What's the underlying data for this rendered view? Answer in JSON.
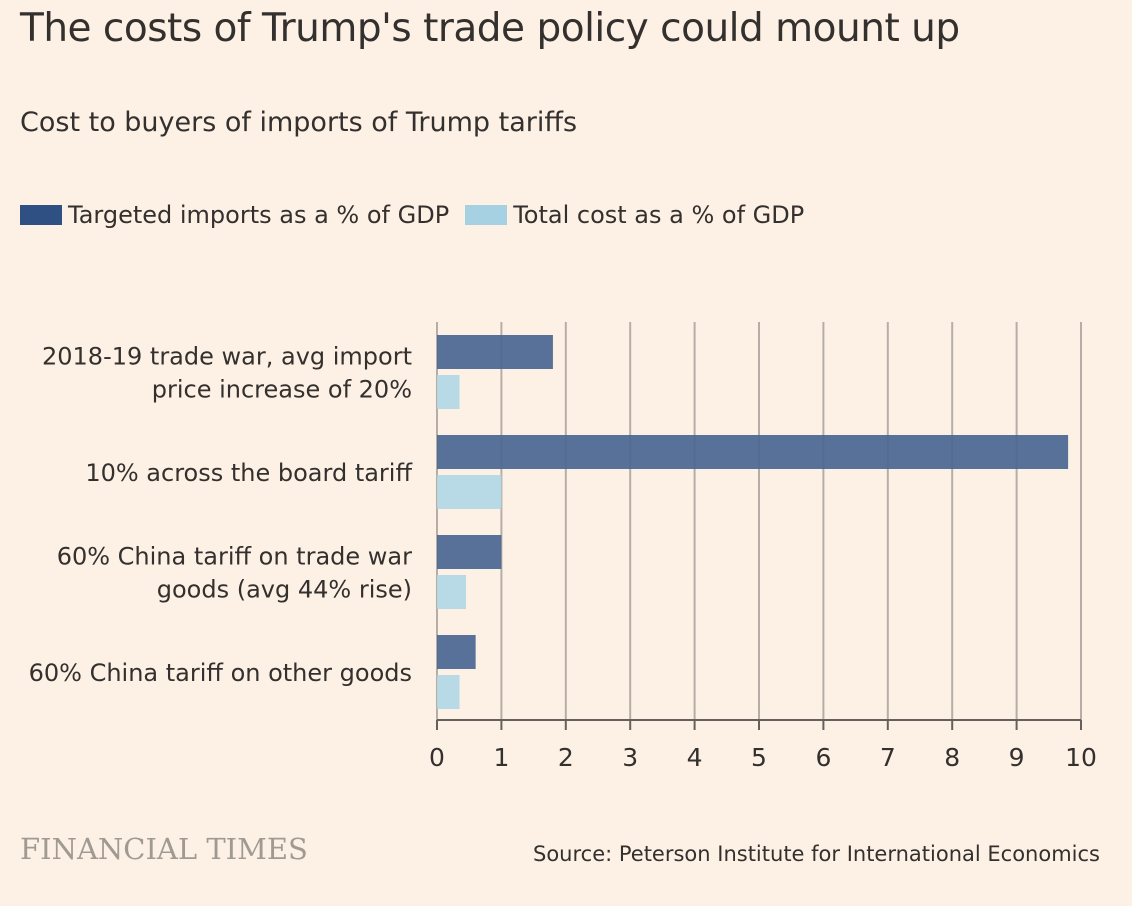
{
  "header": {
    "title": "The costs of Trump's trade policy could mount up",
    "subtitle": "Cost to buyers of imports of Trump tariffs"
  },
  "footer": {
    "logo_text": "FINANCIAL TIMES",
    "source": "Source: Peterson Institute for International Economics"
  },
  "colors": {
    "background": "#fdf1e6",
    "series_dark": "#4a6691",
    "series_light": "#b2d8e6",
    "grid": "#b6aea6",
    "text": "#33302e",
    "logo": "#a19a92"
  },
  "chart_data": {
    "type": "bar",
    "orientation": "horizontal",
    "categories": [
      [
        "2018-19 trade war, avg import",
        "price increase of 20%"
      ],
      [
        "10% across the board tariff"
      ],
      [
        "60% China tariff on trade war",
        "goods (avg 44% rise)"
      ],
      [
        "60% China tariff on other goods"
      ]
    ],
    "series": [
      {
        "name": "Targeted imports as a % of GDP",
        "values": [
          1.8,
          9.8,
          1.0,
          0.6
        ]
      },
      {
        "name": "Total cost as a % of GDP",
        "values": [
          0.35,
          1.0,
          0.45,
          0.35
        ]
      }
    ],
    "xlim": [
      0,
      10
    ],
    "xticks": [
      "0",
      "1",
      "2",
      "3",
      "4",
      "5",
      "6",
      "7",
      "8",
      "9",
      "10"
    ],
    "grid": true,
    "legend_position": "top-left"
  }
}
